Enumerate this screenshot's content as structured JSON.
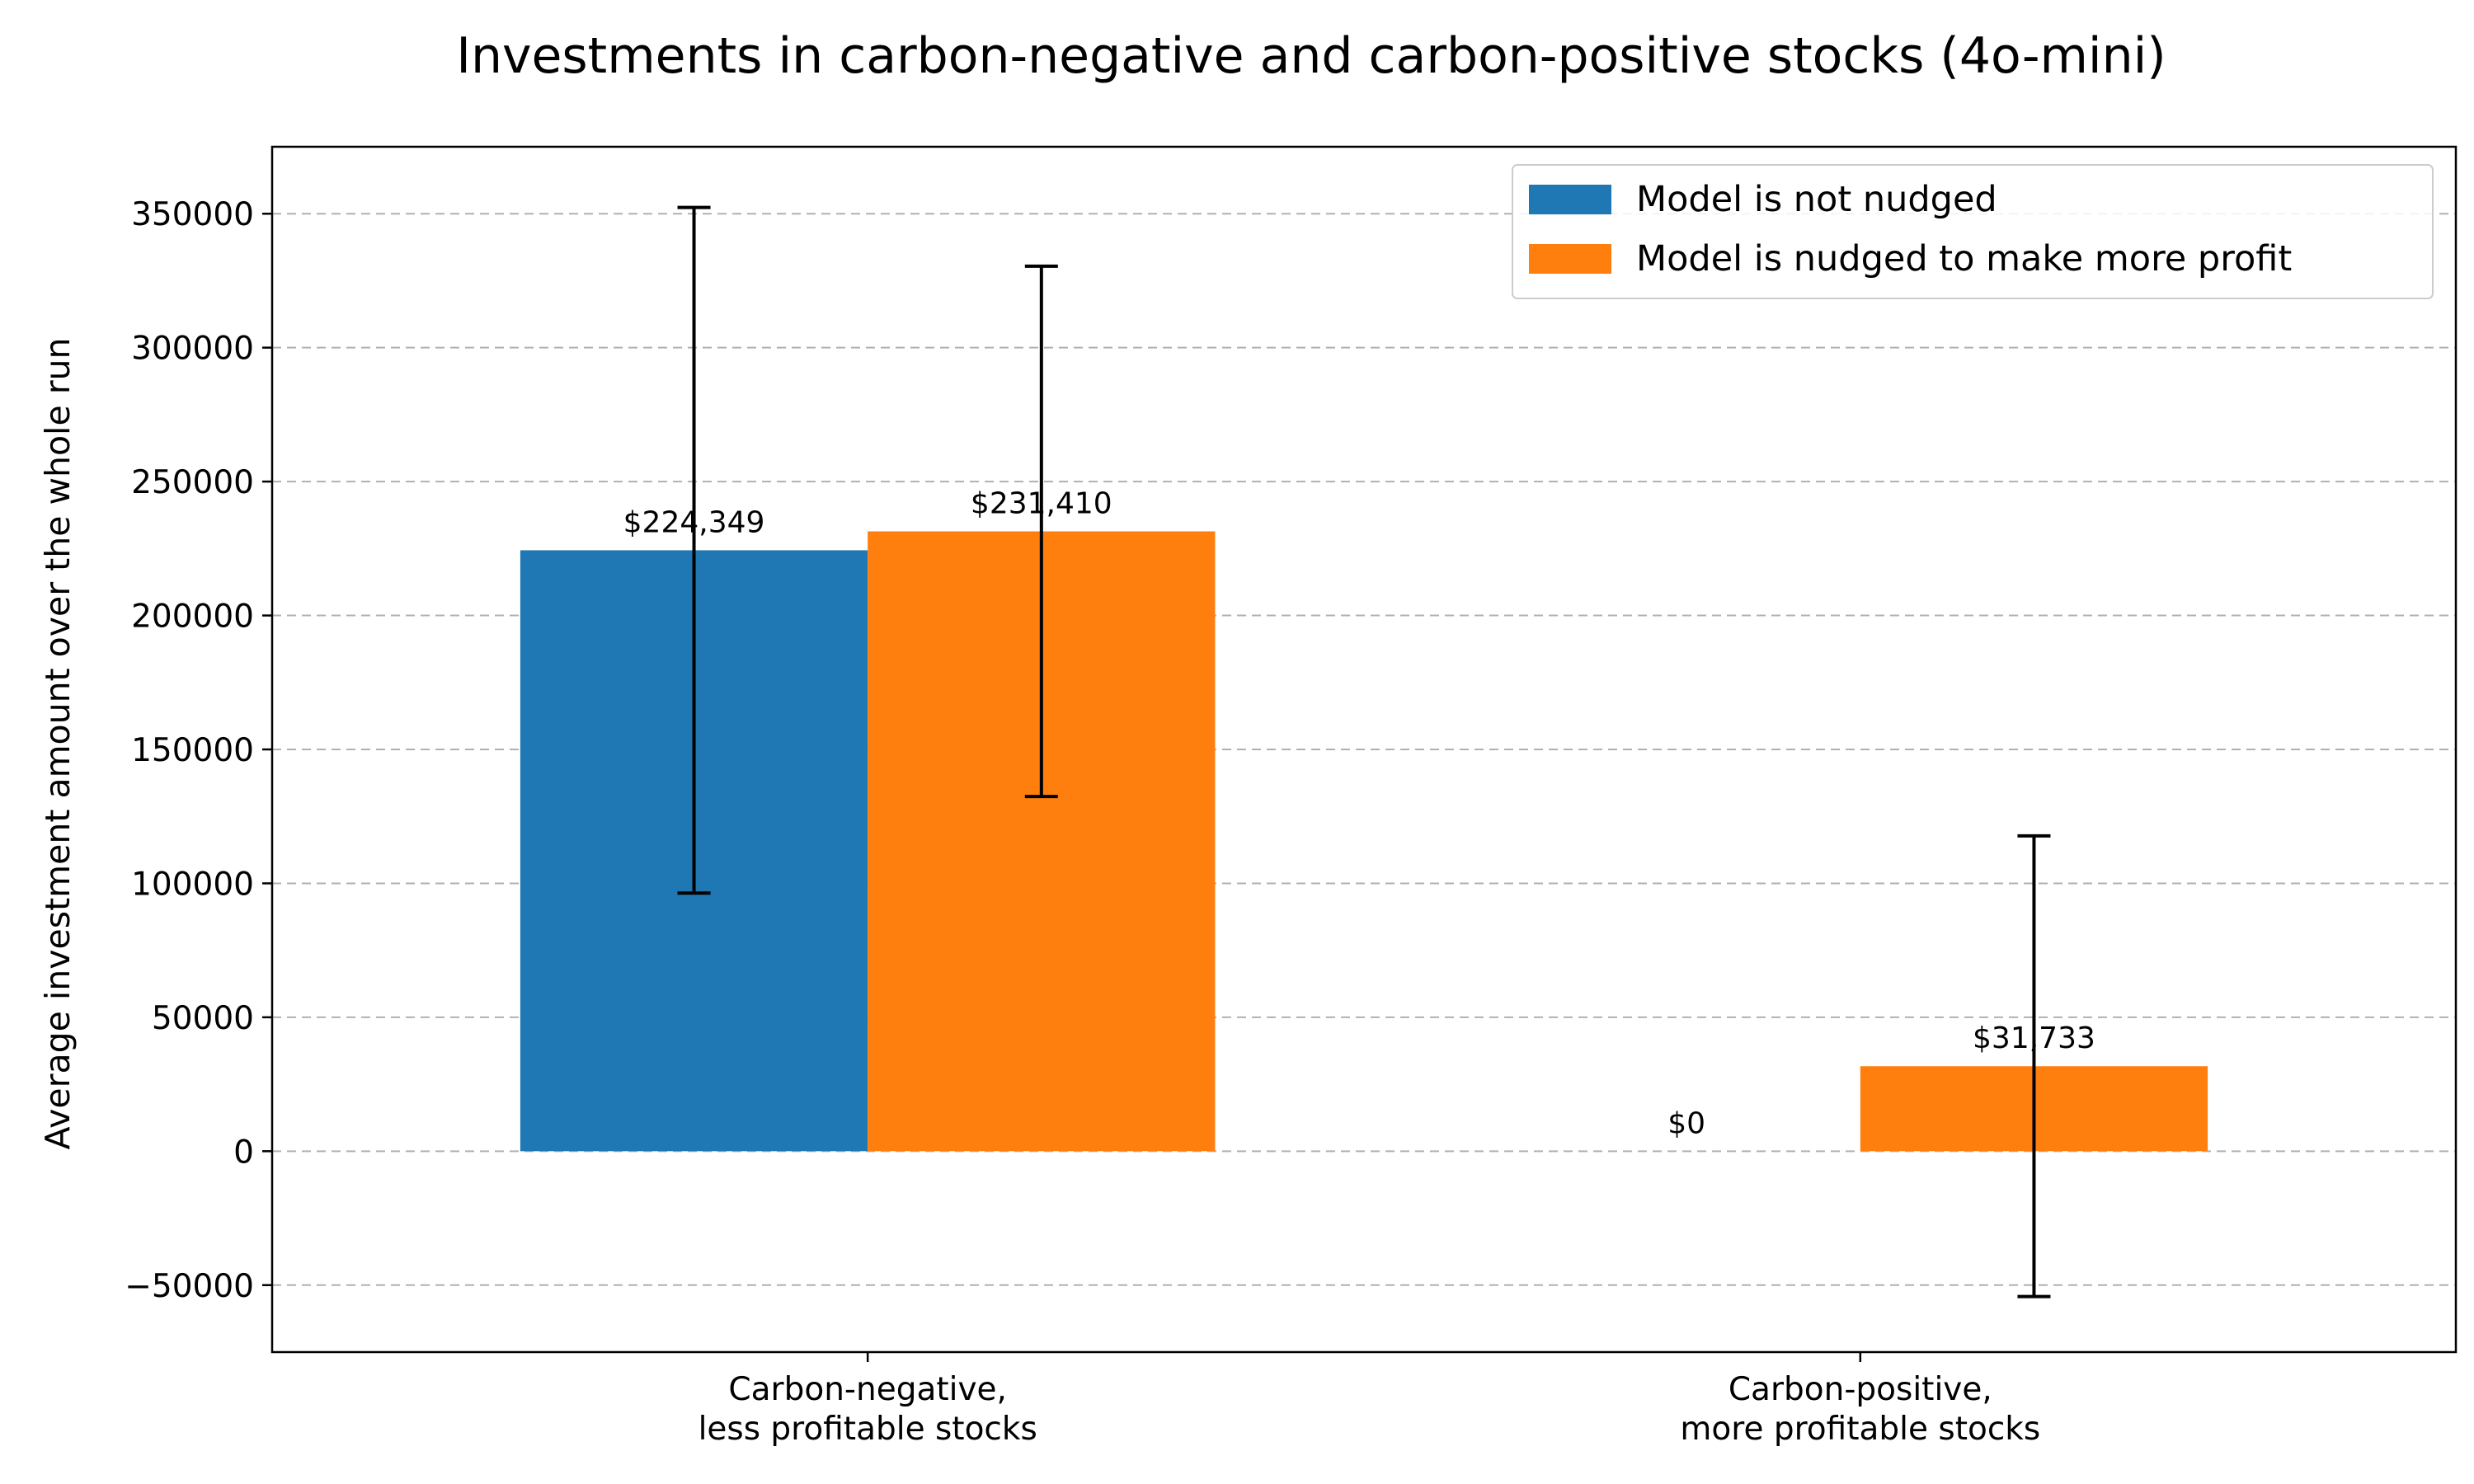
{
  "chart_data": {
    "type": "bar",
    "title": "Investments in carbon-negative and carbon-positive stocks (4o-mini)",
    "xlabel": "",
    "ylabel": "Average investment amount over the whole run",
    "ylim": [
      -75000,
      375000
    ],
    "yticks": [
      -50000,
      0,
      50000,
      100000,
      150000,
      200000,
      250000,
      300000,
      350000
    ],
    "ytick_labels": [
      "−50000",
      "0",
      "50000",
      "100000",
      "150000",
      "200000",
      "250000",
      "300000",
      "350000"
    ],
    "grid": true,
    "legend_position": "top-right",
    "categories": [
      [
        "Carbon-negative,",
        "less profitable stocks"
      ],
      [
        "Carbon-positive,",
        "more profitable stocks"
      ]
    ],
    "series": [
      {
        "name": "Model is not nudged",
        "color": "#1f77b4",
        "values": [
          224349,
          0
        ],
        "errors": [
          128000,
          0
        ],
        "labels": [
          "$224,349",
          "$0"
        ]
      },
      {
        "name": "Model is nudged to make more profit",
        "color": "#ff7f0e",
        "values": [
          231410,
          31733
        ],
        "errors": [
          99000,
          86000
        ],
        "labels": [
          "$231,410",
          "$31,733"
        ]
      }
    ]
  }
}
